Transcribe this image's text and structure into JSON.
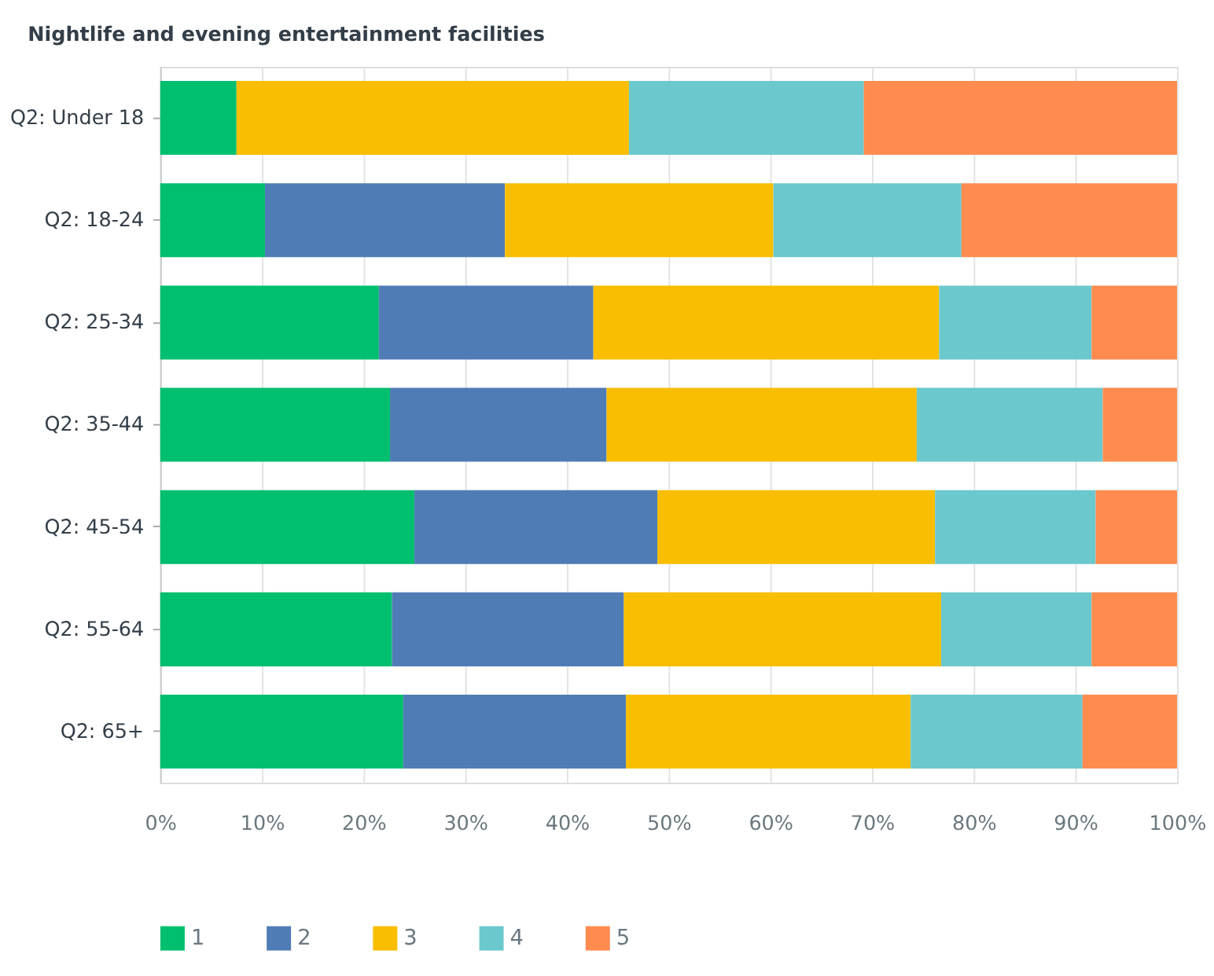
{
  "chart_data": {
    "type": "bar",
    "orientation": "horizontal",
    "stacked": true,
    "title": "Nightlife and evening entertainment facilities",
    "categories": [
      "Q2: Under 18",
      "Q2: 18-24",
      "Q2: 25-34",
      "Q2: 35-44",
      "Q2: 45-54",
      "Q2: 55-64",
      "Q2: 65+"
    ],
    "series": [
      {
        "name": "1",
        "color": "#00bf6f",
        "values": [
          7.5,
          10.3,
          21.5,
          22.6,
          25.0,
          22.8,
          23.9
        ]
      },
      {
        "name": "2",
        "color": "#507cb6",
        "values": [
          0,
          23.6,
          21.1,
          21.3,
          23.9,
          22.8,
          21.9
        ]
      },
      {
        "name": "3",
        "color": "#f9be00",
        "values": [
          38.6,
          26.4,
          34.0,
          30.5,
          27.3,
          31.2,
          28.0
        ]
      },
      {
        "name": "4",
        "color": "#6bc8cd",
        "values": [
          23.1,
          18.5,
          15.0,
          18.3,
          15.8,
          14.8,
          16.9
        ]
      },
      {
        "name": "5",
        "color": "#ff8b4f",
        "values": [
          30.8,
          21.2,
          8.4,
          7.3,
          8.0,
          8.4,
          9.3
        ]
      }
    ],
    "xlim": [
      0,
      100
    ],
    "xticks": [
      {
        "value": 0,
        "label": "0%"
      },
      {
        "value": 10,
        "label": "10%"
      },
      {
        "value": 20,
        "label": "20%"
      },
      {
        "value": 30,
        "label": "30%"
      },
      {
        "value": 40,
        "label": "40%"
      },
      {
        "value": 50,
        "label": "50%"
      },
      {
        "value": 60,
        "label": "60%"
      },
      {
        "value": 70,
        "label": "70%"
      },
      {
        "value": 80,
        "label": "80%"
      },
      {
        "value": 90,
        "label": "90%"
      },
      {
        "value": 100,
        "label": "100%"
      }
    ],
    "grid": "x",
    "legend": "bottom left"
  }
}
